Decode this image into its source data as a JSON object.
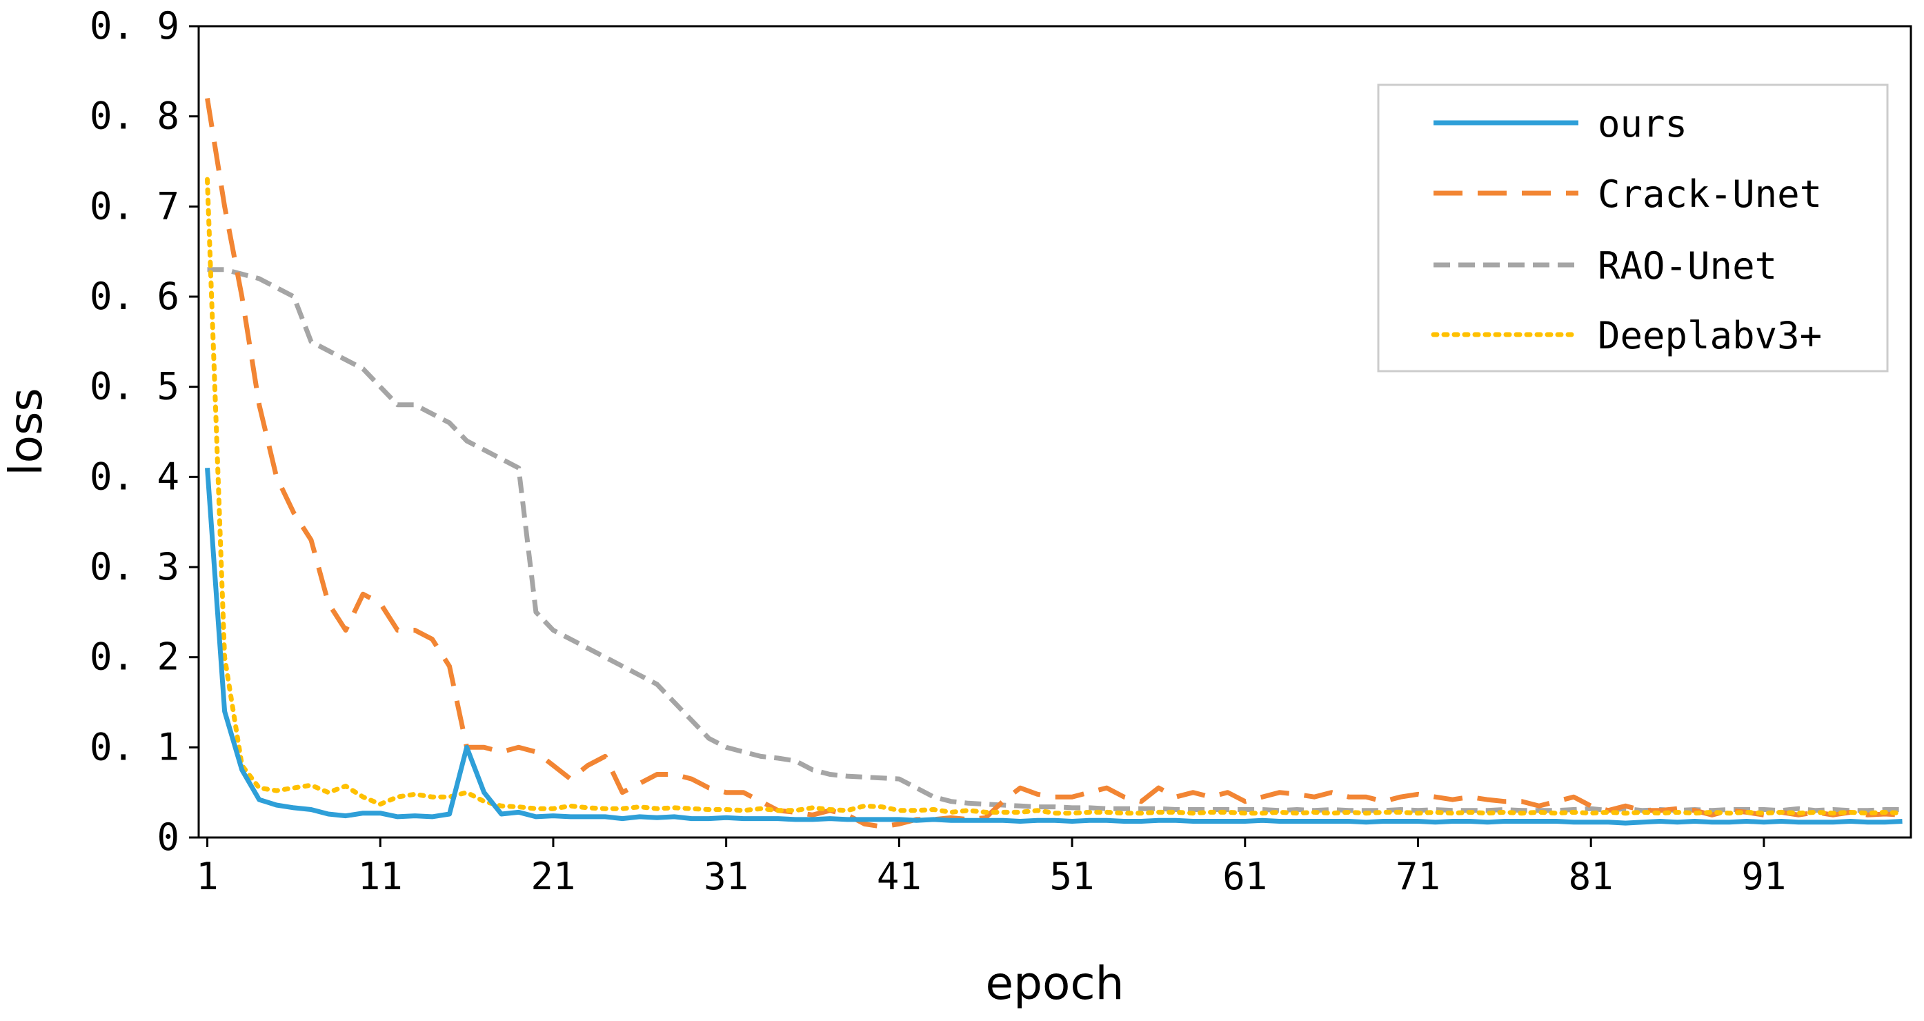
{
  "chart_data": {
    "type": "line",
    "title": "",
    "xlabel": "epoch",
    "ylabel": "loss",
    "xlim": [
      0.5,
      99.5
    ],
    "ylim": [
      0,
      0.9
    ],
    "xticks": [
      1,
      11,
      21,
      31,
      41,
      51,
      61,
      71,
      81,
      91
    ],
    "xtick_labels": [
      "1",
      "11",
      "21",
      "31",
      "41",
      "51",
      "61",
      "71",
      "81",
      "91"
    ],
    "yticks": [
      0,
      0.1,
      0.2,
      0.3,
      0.4,
      0.5,
      0.6,
      0.7,
      0.8,
      0.9
    ],
    "ytick_labels": [
      "0",
      "0. 1",
      "0. 2",
      "0. 3",
      "0. 4",
      "0. 5",
      "0. 6",
      "0. 7",
      "0. 8",
      "0. 9"
    ],
    "grid": false,
    "legend_position": "top-right",
    "series": [
      {
        "name": "ours",
        "color": "#2e9fd8",
        "dash": "solid",
        "values": [
          0.41,
          0.14,
          0.075,
          0.042,
          0.036,
          0.033,
          0.031,
          0.026,
          0.024,
          0.027,
          0.027,
          0.023,
          0.024,
          0.023,
          0.026,
          0.1,
          0.05,
          0.026,
          0.028,
          0.023,
          0.024,
          0.023,
          0.023,
          0.023,
          0.021,
          0.023,
          0.022,
          0.023,
          0.021,
          0.021,
          0.022,
          0.021,
          0.021,
          0.021,
          0.02,
          0.02,
          0.021,
          0.02,
          0.02,
          0.02,
          0.02,
          0.019,
          0.02,
          0.019,
          0.019,
          0.019,
          0.019,
          0.018,
          0.019,
          0.019,
          0.018,
          0.019,
          0.019,
          0.018,
          0.018,
          0.019,
          0.019,
          0.018,
          0.018,
          0.018,
          0.018,
          0.019,
          0.018,
          0.018,
          0.018,
          0.018,
          0.018,
          0.017,
          0.018,
          0.018,
          0.018,
          0.017,
          0.018,
          0.018,
          0.017,
          0.018,
          0.018,
          0.018,
          0.018,
          0.017,
          0.017,
          0.017,
          0.016,
          0.017,
          0.018,
          0.017,
          0.018,
          0.017,
          0.017,
          0.018,
          0.017,
          0.018,
          0.017,
          0.017,
          0.017,
          0.018,
          0.017,
          0.017,
          0.018
        ]
      },
      {
        "name": "Crack-Unet",
        "color": "#f28533",
        "dash": "long",
        "values": [
          0.82,
          0.7,
          0.6,
          0.48,
          0.4,
          0.36,
          0.33,
          0.26,
          0.23,
          0.27,
          0.26,
          0.23,
          0.23,
          0.22,
          0.19,
          0.1,
          0.1,
          0.095,
          0.1,
          0.095,
          0.08,
          0.065,
          0.08,
          0.09,
          0.05,
          0.06,
          0.07,
          0.07,
          0.065,
          0.055,
          0.05,
          0.05,
          0.04,
          0.03,
          0.028,
          0.025,
          0.03,
          0.025,
          0.015,
          0.012,
          0.015,
          0.02,
          0.02,
          0.022,
          0.02,
          0.022,
          0.04,
          0.055,
          0.048,
          0.045,
          0.045,
          0.05,
          0.055,
          0.045,
          0.04,
          0.055,
          0.045,
          0.05,
          0.045,
          0.05,
          0.04,
          0.045,
          0.05,
          0.048,
          0.045,
          0.05,
          0.045,
          0.045,
          0.04,
          0.045,
          0.048,
          0.045,
          0.042,
          0.045,
          0.042,
          0.04,
          0.04,
          0.035,
          0.04,
          0.045,
          0.035,
          0.03,
          0.035,
          0.03,
          0.03,
          0.032,
          0.03,
          0.025,
          0.03,
          0.028,
          0.025,
          0.028,
          0.025,
          0.028,
          0.025,
          0.028,
          0.025,
          0.026,
          0.025
        ]
      },
      {
        "name": "RAO-Unet",
        "color": "#a5a5a5",
        "dash": "short",
        "values": [
          0.63,
          0.63,
          0.625,
          0.62,
          0.61,
          0.6,
          0.55,
          0.54,
          0.53,
          0.52,
          0.5,
          0.48,
          0.48,
          0.47,
          0.46,
          0.44,
          0.43,
          0.42,
          0.41,
          0.25,
          0.23,
          0.22,
          0.21,
          0.2,
          0.19,
          0.18,
          0.17,
          0.15,
          0.13,
          0.11,
          0.1,
          0.095,
          0.09,
          0.088,
          0.085,
          0.075,
          0.07,
          0.068,
          0.067,
          0.066,
          0.065,
          0.055,
          0.045,
          0.04,
          0.038,
          0.037,
          0.036,
          0.035,
          0.034,
          0.034,
          0.033,
          0.033,
          0.032,
          0.032,
          0.032,
          0.032,
          0.031,
          0.031,
          0.031,
          0.031,
          0.031,
          0.031,
          0.03,
          0.031,
          0.03,
          0.031,
          0.03,
          0.03,
          0.03,
          0.031,
          0.03,
          0.031,
          0.03,
          0.03,
          0.03,
          0.031,
          0.03,
          0.03,
          0.03,
          0.031,
          0.032,
          0.03,
          0.032,
          0.03,
          0.031,
          0.03,
          0.031,
          0.03,
          0.031,
          0.031,
          0.031,
          0.03,
          0.032,
          0.03,
          0.031,
          0.03,
          0.03,
          0.031,
          0.031
        ]
      },
      {
        "name": "Deeplabv3+",
        "color": "#ffc000",
        "dash": "dotted",
        "values": [
          0.73,
          0.2,
          0.08,
          0.055,
          0.052,
          0.055,
          0.058,
          0.05,
          0.057,
          0.045,
          0.037,
          0.045,
          0.048,
          0.045,
          0.045,
          0.05,
          0.04,
          0.035,
          0.034,
          0.032,
          0.032,
          0.035,
          0.033,
          0.032,
          0.032,
          0.034,
          0.032,
          0.033,
          0.032,
          0.031,
          0.031,
          0.03,
          0.032,
          0.03,
          0.03,
          0.033,
          0.031,
          0.03,
          0.035,
          0.034,
          0.03,
          0.03,
          0.031,
          0.028,
          0.03,
          0.028,
          0.028,
          0.028,
          0.03,
          0.027,
          0.027,
          0.028,
          0.028,
          0.027,
          0.027,
          0.028,
          0.028,
          0.027,
          0.028,
          0.028,
          0.027,
          0.027,
          0.028,
          0.027,
          0.028,
          0.027,
          0.028,
          0.027,
          0.028,
          0.028,
          0.027,
          0.028,
          0.027,
          0.028,
          0.027,
          0.028,
          0.027,
          0.028,
          0.027,
          0.028,
          0.027,
          0.028,
          0.027,
          0.028,
          0.027,
          0.028,
          0.027,
          0.028,
          0.027,
          0.028,
          0.027,
          0.028,
          0.027,
          0.028,
          0.027,
          0.028,
          0.027,
          0.028,
          0.027
        ]
      }
    ]
  }
}
